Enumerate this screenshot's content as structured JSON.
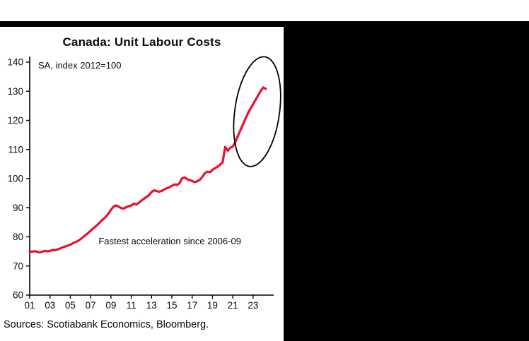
{
  "frame": {
    "top_bar_color": "#000000",
    "side_panel_color": "#000000"
  },
  "footer": {
    "sources": "Sources: Scotiabank Economics, Bloomberg."
  },
  "chart_data": {
    "type": "line",
    "title": "Canada: Unit Labour Costs",
    "subtitle": "SA, index 2012=100",
    "xlabel": "",
    "ylabel": "",
    "ylim": [
      60,
      140
    ],
    "yticks": [
      60,
      70,
      80,
      90,
      100,
      110,
      120,
      130,
      140
    ],
    "x_range": [
      2001,
      2024.75
    ],
    "xtick_years": [
      2001,
      2003,
      2005,
      2007,
      2009,
      2011,
      2013,
      2015,
      2017,
      2019,
      2021,
      2023
    ],
    "xtick_labels": [
      "01",
      "03",
      "05",
      "07",
      "09",
      "11",
      "13",
      "15",
      "17",
      "19",
      "21",
      "23"
    ],
    "grid": false,
    "legend": "none",
    "series": [
      {
        "name": "Canada unit labour costs (SA, index 2012=100)",
        "color": "#e8112d",
        "x_start": 2001.0,
        "x_step": 0.25,
        "values": [
          75.0,
          74.9,
          75.1,
          74.8,
          74.7,
          74.9,
          75.2,
          75.0,
          75.2,
          75.5,
          75.4,
          75.7,
          76.0,
          76.4,
          76.7,
          77.0,
          77.3,
          77.8,
          78.2,
          78.6,
          79.2,
          79.9,
          80.6,
          81.3,
          82.1,
          82.9,
          83.6,
          84.4,
          85.3,
          86.1,
          86.9,
          88.0,
          89.3,
          90.4,
          90.8,
          90.4,
          89.9,
          89.7,
          90.2,
          90.5,
          90.8,
          91.4,
          91.1,
          91.7,
          92.4,
          93.1,
          93.7,
          94.3,
          95.4,
          96.0,
          95.7,
          95.5,
          95.8,
          96.3,
          96.7,
          97.0,
          97.5,
          98.0,
          97.8,
          98.4,
          100.1,
          100.4,
          99.8,
          99.5,
          99.2,
          98.8,
          99.1,
          99.6,
          100.6,
          101.9,
          102.4,
          102.2,
          103.0,
          103.6,
          104.1,
          104.8,
          105.6,
          110.9,
          109.6,
          110.6,
          111.0,
          112.6,
          114.6,
          116.6,
          118.6,
          120.6,
          122.5,
          124.1,
          125.6,
          127.1,
          128.6,
          130.1,
          131.3,
          130.8
        ]
      }
    ],
    "annotations": [
      {
        "text": "Fastest acceleration since 2006-09",
        "x": 2014.8,
        "y": 77.5
      }
    ],
    "highlight_ellipse": {
      "cx": 2023.4,
      "cy": 123,
      "rx_years": 2.2,
      "ry_units": 19,
      "rotation_deg": 8,
      "color": "#000000",
      "note": "hand-drawn style circle highlighting the recent acceleration"
    }
  }
}
